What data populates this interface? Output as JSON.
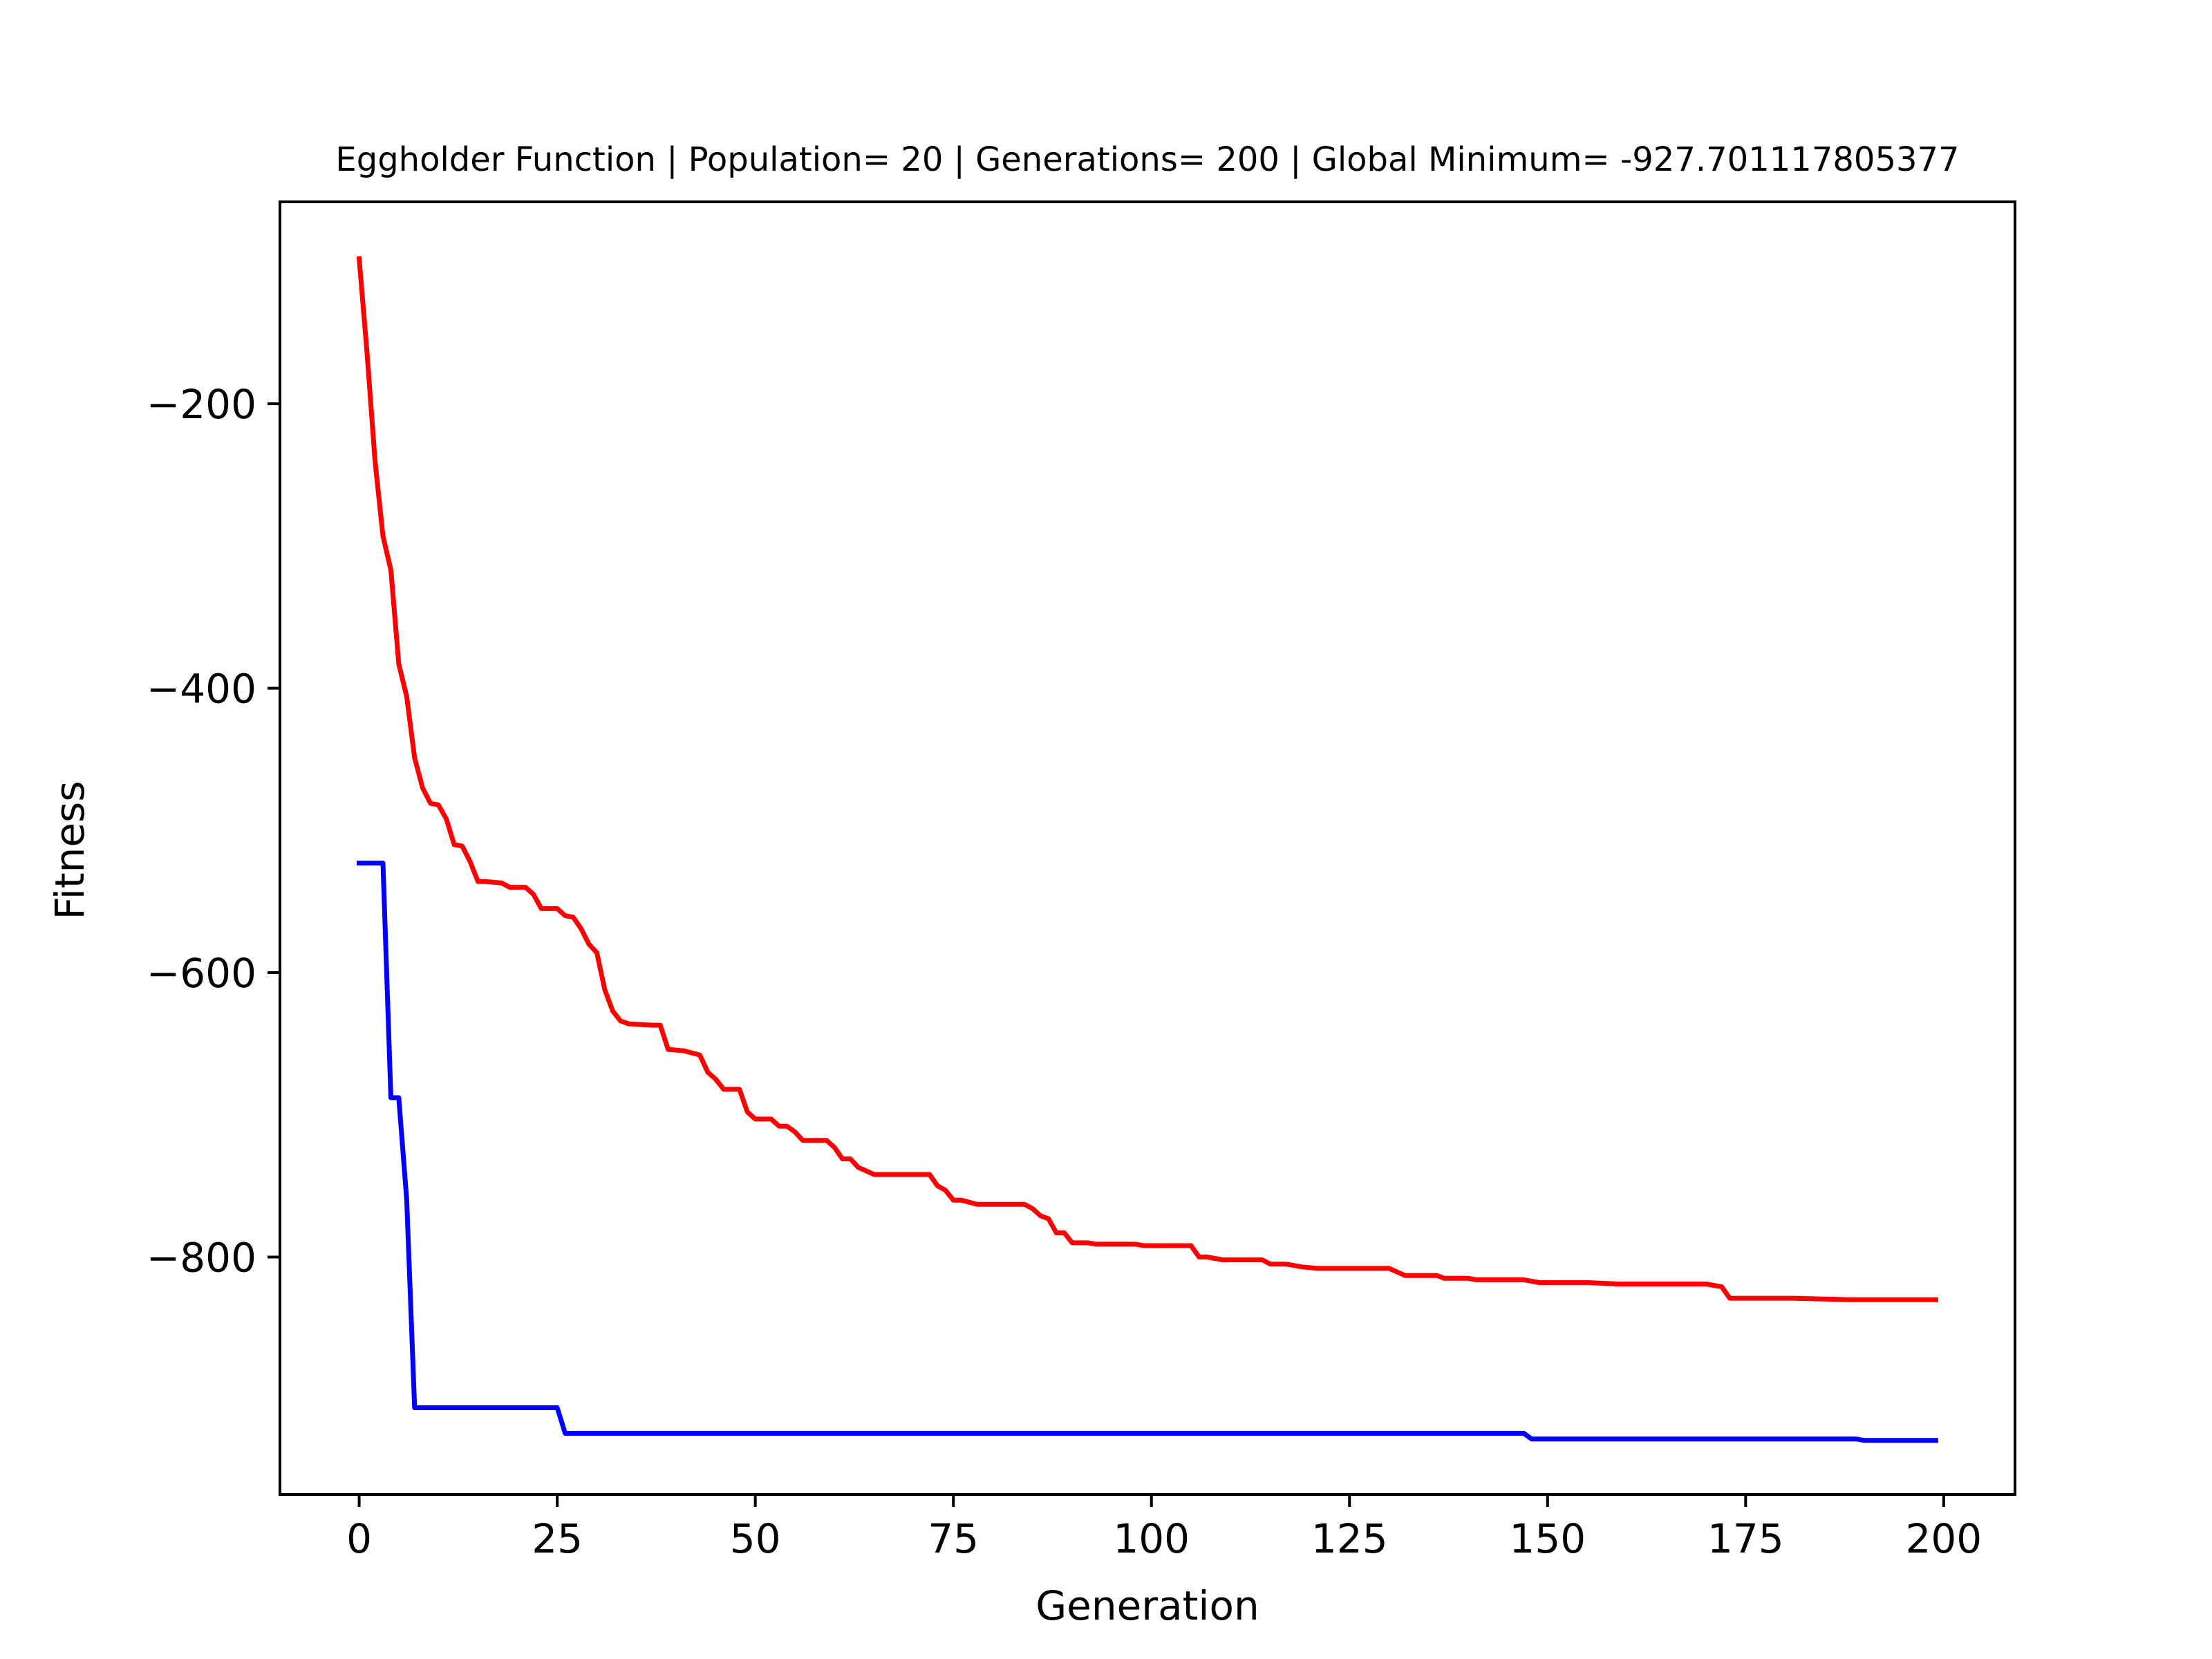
{
  "chart_data": {
    "type": "line",
    "title": "Eggholder Function | Population= 20 | Generations= 200 | Global Minimum= -927.701117805377",
    "xlabel": "Generation",
    "ylabel": "Fitness",
    "xlim": [
      -10,
      209
    ],
    "ylim": [
      -967,
      -58
    ],
    "xticks": [
      0,
      25,
      50,
      75,
      100,
      125,
      150,
      175,
      200
    ],
    "yticks": [
      -200,
      -400,
      -600,
      -800
    ],
    "xtick_labels": [
      "0",
      "25",
      "50",
      "75",
      "100",
      "125",
      "150",
      "175",
      "200"
    ],
    "ytick_labels": [
      "−200",
      "−400",
      "−600",
      "−800"
    ],
    "grid": false,
    "series": [
      {
        "color": "#ff0000",
        "points": [
          [
            0,
            -98
          ],
          [
            1,
            -165
          ],
          [
            2,
            -240
          ],
          [
            3,
            -293
          ],
          [
            4,
            -317
          ],
          [
            5,
            -383
          ],
          [
            6,
            -406
          ],
          [
            7,
            -449
          ],
          [
            8,
            -470
          ],
          [
            9,
            -481
          ],
          [
            10,
            -482
          ],
          [
            11,
            -492
          ],
          [
            12,
            -510
          ],
          [
            13,
            -511
          ],
          [
            14,
            -522
          ],
          [
            15,
            -536
          ],
          [
            16,
            -536
          ],
          [
            18,
            -537
          ],
          [
            19,
            -540
          ],
          [
            21,
            -540
          ],
          [
            22,
            -545
          ],
          [
            23,
            -555
          ],
          [
            25,
            -555
          ],
          [
            26,
            -560
          ],
          [
            27,
            -561
          ],
          [
            28,
            -569
          ],
          [
            29,
            -580
          ],
          [
            30,
            -586
          ],
          [
            31,
            -612
          ],
          [
            32,
            -627
          ],
          [
            33,
            -634
          ],
          [
            34,
            -636
          ],
          [
            37,
            -637
          ],
          [
            38,
            -637
          ],
          [
            39,
            -654
          ],
          [
            41,
            -655
          ],
          [
            43,
            -658
          ],
          [
            44,
            -670
          ],
          [
            45,
            -675
          ],
          [
            46,
            -682
          ],
          [
            48,
            -682
          ],
          [
            49,
            -698
          ],
          [
            50,
            -703
          ],
          [
            52,
            -703
          ],
          [
            53,
            -708
          ],
          [
            54,
            -708
          ],
          [
            55,
            -712
          ],
          [
            56,
            -718
          ],
          [
            59,
            -718
          ],
          [
            60,
            -723
          ],
          [
            61,
            -731
          ],
          [
            62,
            -731
          ],
          [
            63,
            -737
          ],
          [
            65,
            -742
          ],
          [
            72,
            -742
          ],
          [
            73,
            -750
          ],
          [
            74,
            -753
          ],
          [
            75,
            -760
          ],
          [
            76,
            -760
          ],
          [
            78,
            -763
          ],
          [
            84,
            -763
          ],
          [
            85,
            -766
          ],
          [
            86,
            -771
          ],
          [
            87,
            -773
          ],
          [
            88,
            -783
          ],
          [
            89,
            -783
          ],
          [
            90,
            -790
          ],
          [
            92,
            -790
          ],
          [
            93,
            -791
          ],
          [
            98,
            -791
          ],
          [
            99,
            -792
          ],
          [
            105,
            -792
          ],
          [
            106,
            -800
          ],
          [
            107,
            -800
          ],
          [
            108,
            -801
          ],
          [
            109,
            -802
          ],
          [
            114,
            -802
          ],
          [
            115,
            -805
          ],
          [
            117,
            -805
          ],
          [
            119,
            -807
          ],
          [
            121,
            -808
          ],
          [
            125,
            -808
          ],
          [
            130,
            -808
          ],
          [
            132,
            -813
          ],
          [
            136,
            -813
          ],
          [
            137,
            -815
          ],
          [
            140,
            -815
          ],
          [
            141,
            -816
          ],
          [
            147,
            -816
          ],
          [
            149,
            -818
          ],
          [
            155,
            -818
          ],
          [
            159,
            -819
          ],
          [
            170,
            -819
          ],
          [
            172,
            -821
          ],
          [
            173,
            -829
          ],
          [
            181,
            -829
          ],
          [
            188,
            -830
          ],
          [
            194,
            -830
          ],
          [
            199,
            -830
          ]
        ]
      },
      {
        "color": "#0000ff",
        "points": [
          [
            0,
            -523
          ],
          [
            3,
            -523
          ],
          [
            4,
            -688
          ],
          [
            5,
            -688
          ],
          [
            6,
            -760
          ],
          [
            7,
            -906
          ],
          [
            25,
            -906
          ],
          [
            26,
            -924
          ],
          [
            147,
            -924
          ],
          [
            148,
            -928
          ],
          [
            189,
            -928
          ],
          [
            190,
            -929
          ],
          [
            199,
            -929
          ]
        ]
      }
    ]
  }
}
